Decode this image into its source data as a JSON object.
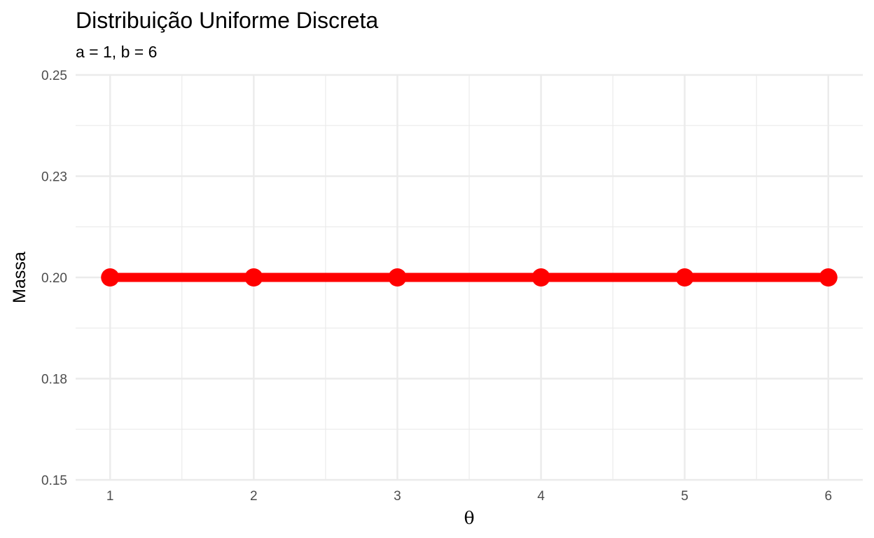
{
  "chart_data": {
    "type": "line",
    "title": "Distribuição Uniforme Discreta",
    "subtitle": "a =  1, b = 6",
    "xlabel": "θ",
    "ylabel": "Massa",
    "x": [
      1,
      2,
      3,
      4,
      5,
      6
    ],
    "y": [
      0.2,
      0.2,
      0.2,
      0.2,
      0.2,
      0.2
    ],
    "xlim": [
      0.76,
      6.24
    ],
    "ylim": [
      0.15,
      0.25
    ],
    "x_ticks": [
      1,
      2,
      3,
      4,
      5,
      6
    ],
    "x_tick_labels": [
      "1",
      "2",
      "3",
      "4",
      "5",
      "6"
    ],
    "y_ticks": [
      0.15,
      0.175,
      0.2,
      0.225,
      0.25
    ],
    "y_tick_labels": [
      "0.15",
      "0.18",
      "0.20",
      "0.23",
      "0.25"
    ],
    "grid": true,
    "legend": "none",
    "series_color": "#ff0000",
    "grid_color": "#ebebeb"
  }
}
